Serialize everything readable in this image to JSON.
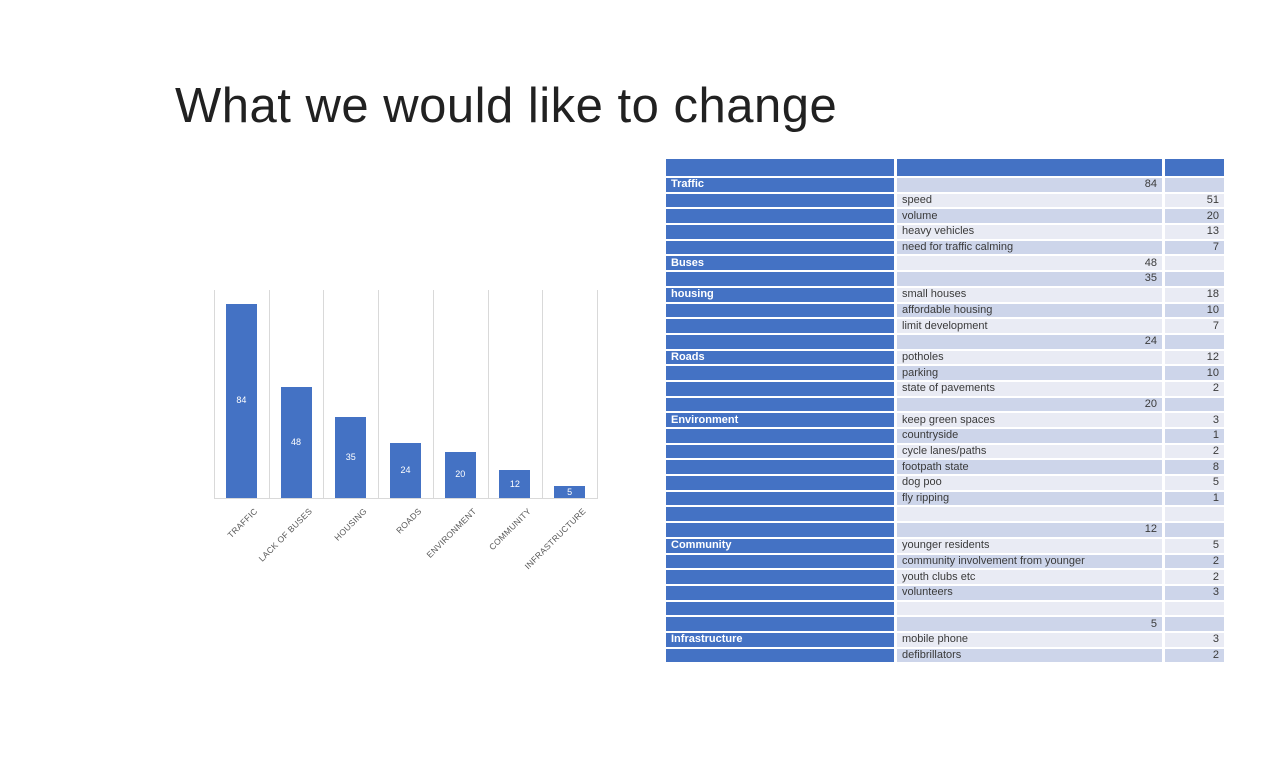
{
  "title": "What we would like to change",
  "colors": {
    "accent_blue": "#4472C4",
    "band_light": "#E9EBF4",
    "band_dark": "#CDD5EA",
    "gridline": "#D9D9D9",
    "axis_label_gray": "#595959",
    "bar_value_label": "#ffffff"
  },
  "chart_data": {
    "type": "bar",
    "title": "",
    "xlabel": "",
    "ylabel": "",
    "categories": [
      "TRAFFIC",
      "LACK OF BUSES",
      "HOUSING",
      "ROADS",
      "ENVIRONMENT",
      "COMMUNITY",
      "INFRASTRUCTURE"
    ],
    "values": [
      84,
      48,
      35,
      24,
      20,
      12,
      5
    ],
    "data_labels": [
      "84",
      "48",
      "35",
      "24",
      "20",
      "12",
      "5"
    ],
    "ylim": [
      0,
      90
    ],
    "legend": "none",
    "grid": "vertical category separators, light gray",
    "bar_color": "#4472C4"
  },
  "table": {
    "header": [
      "",
      "",
      ""
    ],
    "rows": [
      {
        "c1": "Traffic",
        "c2": "84",
        "c3": ""
      },
      {
        "c1": "",
        "c2": "speed",
        "c3": "51"
      },
      {
        "c1": "",
        "c2": "volume",
        "c3": "20"
      },
      {
        "c1": "",
        "c2": "heavy vehicles",
        "c3": "13"
      },
      {
        "c1": "",
        "c2": "need for traffic calming",
        "c3": "7"
      },
      {
        "c1": "Buses",
        "c2": "48",
        "c3": ""
      },
      {
        "c1": "",
        "c2": "35",
        "c3": ""
      },
      {
        "c1": "housing",
        "c2": "small houses",
        "c3": "18"
      },
      {
        "c1": "",
        "c2": "affordable housing",
        "c3": "10"
      },
      {
        "c1": "",
        "c2": "limit development",
        "c3": "7"
      },
      {
        "c1": "",
        "c2": "24",
        "c3": ""
      },
      {
        "c1": "Roads",
        "c2": "potholes",
        "c3": "12"
      },
      {
        "c1": "",
        "c2": "parking",
        "c3": "10"
      },
      {
        "c1": "",
        "c2": "state of pavements",
        "c3": "2"
      },
      {
        "c1": "",
        "c2": "20",
        "c3": ""
      },
      {
        "c1": "Environment",
        "c2": "keep green spaces",
        "c3": "3"
      },
      {
        "c1": "",
        "c2": "countryside",
        "c3": "1"
      },
      {
        "c1": "",
        "c2": "cycle lanes/paths",
        "c3": "2"
      },
      {
        "c1": "",
        "c2": "footpath state",
        "c3": "8"
      },
      {
        "c1": "",
        "c2": "dog poo",
        "c3": "5"
      },
      {
        "c1": "",
        "c2": "fly ripping",
        "c3": "1"
      },
      {
        "c1": "",
        "c2": "",
        "c3": ""
      },
      {
        "c1": "",
        "c2": "12",
        "c3": ""
      },
      {
        "c1": "Community",
        "c2": "younger residents",
        "c3": "5"
      },
      {
        "c1": "",
        "c2": "community involvement from younger",
        "c3": "2"
      },
      {
        "c1": "",
        "c2": "youth clubs etc",
        "c3": "2"
      },
      {
        "c1": "",
        "c2": "volunteers",
        "c3": "3"
      },
      {
        "c1": "",
        "c2": "",
        "c3": ""
      },
      {
        "c1": "",
        "c2": "5",
        "c3": ""
      },
      {
        "c1": "Infrastructure",
        "c2": "mobile phone",
        "c3": "3"
      },
      {
        "c1": "",
        "c2": "defibrillators",
        "c3": "2"
      }
    ]
  }
}
